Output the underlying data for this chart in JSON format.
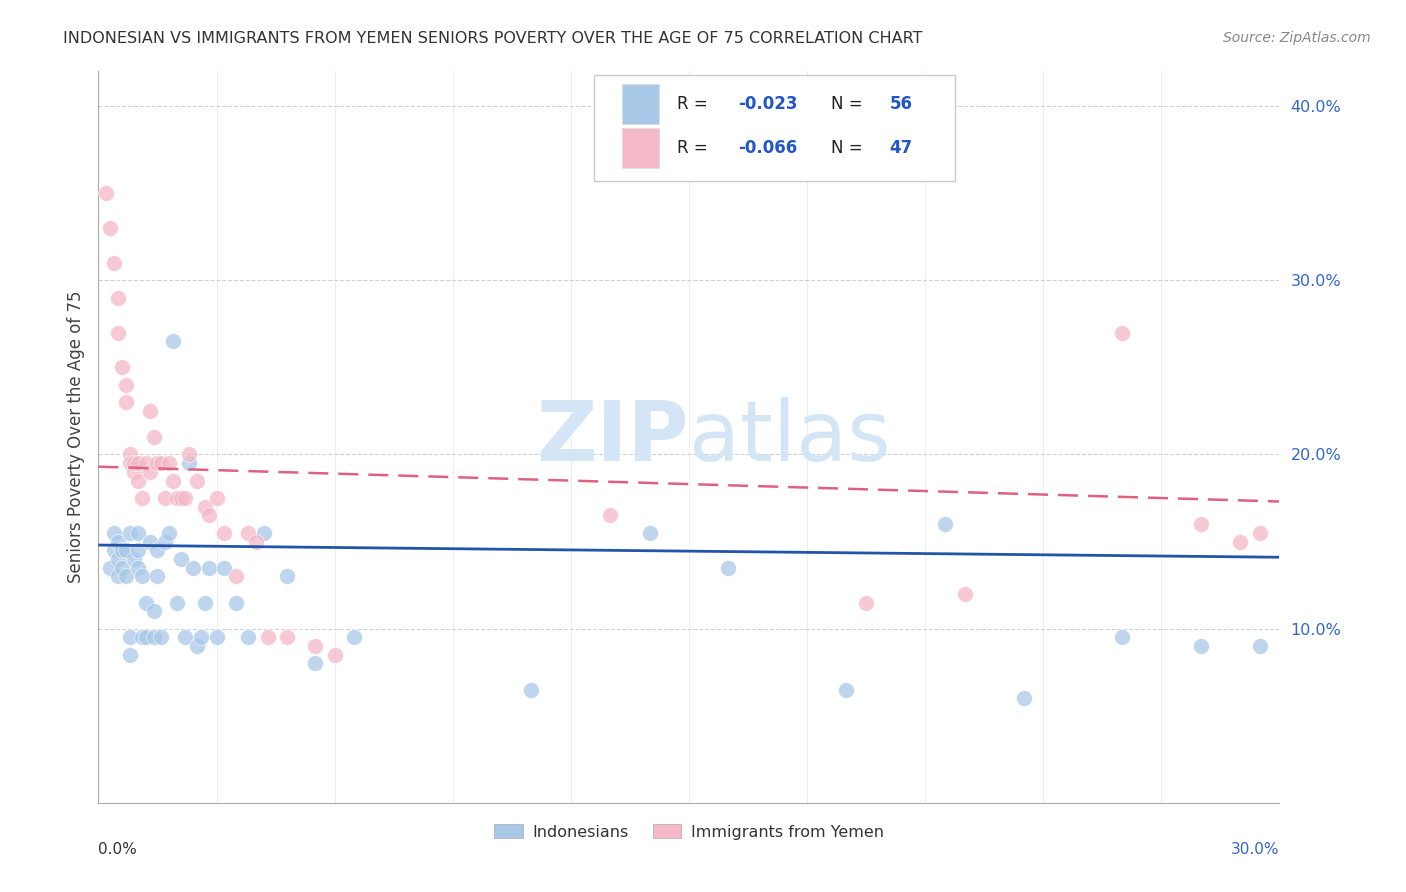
{
  "title": "INDONESIAN VS IMMIGRANTS FROM YEMEN SENIORS POVERTY OVER THE AGE OF 75 CORRELATION CHART",
  "source": "Source: ZipAtlas.com",
  "ylabel": "Seniors Poverty Over the Age of 75",
  "xlim": [
    0.0,
    0.3
  ],
  "ylim": [
    0.0,
    0.42
  ],
  "yticks": [
    0.1,
    0.2,
    0.3,
    0.4
  ],
  "ytick_labels": [
    "10.0%",
    "20.0%",
    "30.0%",
    "40.0%"
  ],
  "blue_color": "#a8c8e8",
  "pink_color": "#f4b8c8",
  "blue_line_color": "#2255aa",
  "pink_line_color": "#e06080",
  "watermark_color": "#d0e4f4",
  "indonesians_x": [
    0.003,
    0.004,
    0.004,
    0.005,
    0.005,
    0.005,
    0.006,
    0.006,
    0.007,
    0.007,
    0.008,
    0.008,
    0.008,
    0.009,
    0.01,
    0.01,
    0.01,
    0.011,
    0.011,
    0.012,
    0.012,
    0.013,
    0.014,
    0.014,
    0.015,
    0.015,
    0.016,
    0.017,
    0.018,
    0.019,
    0.02,
    0.021,
    0.022,
    0.023,
    0.024,
    0.025,
    0.026,
    0.027,
    0.028,
    0.03,
    0.032,
    0.035,
    0.038,
    0.042,
    0.048,
    0.055,
    0.065,
    0.11,
    0.14,
    0.16,
    0.19,
    0.215,
    0.235,
    0.26,
    0.28,
    0.295
  ],
  "indonesians_y": [
    0.135,
    0.145,
    0.155,
    0.13,
    0.14,
    0.15,
    0.135,
    0.145,
    0.13,
    0.145,
    0.085,
    0.095,
    0.155,
    0.14,
    0.135,
    0.145,
    0.155,
    0.095,
    0.13,
    0.095,
    0.115,
    0.15,
    0.095,
    0.11,
    0.13,
    0.145,
    0.095,
    0.15,
    0.155,
    0.265,
    0.115,
    0.14,
    0.095,
    0.195,
    0.135,
    0.09,
    0.095,
    0.115,
    0.135,
    0.095,
    0.135,
    0.115,
    0.095,
    0.155,
    0.13,
    0.08,
    0.095,
    0.065,
    0.155,
    0.135,
    0.065,
    0.16,
    0.06,
    0.095,
    0.09,
    0.09
  ],
  "yemen_x": [
    0.002,
    0.003,
    0.004,
    0.005,
    0.005,
    0.006,
    0.007,
    0.007,
    0.008,
    0.008,
    0.009,
    0.009,
    0.01,
    0.01,
    0.011,
    0.012,
    0.013,
    0.013,
    0.014,
    0.015,
    0.016,
    0.017,
    0.018,
    0.019,
    0.02,
    0.021,
    0.022,
    0.023,
    0.025,
    0.027,
    0.028,
    0.03,
    0.032,
    0.035,
    0.038,
    0.04,
    0.043,
    0.048,
    0.055,
    0.06,
    0.13,
    0.195,
    0.22,
    0.26,
    0.28,
    0.29,
    0.295
  ],
  "yemen_y": [
    0.35,
    0.33,
    0.31,
    0.29,
    0.27,
    0.25,
    0.24,
    0.23,
    0.2,
    0.195,
    0.19,
    0.195,
    0.185,
    0.195,
    0.175,
    0.195,
    0.19,
    0.225,
    0.21,
    0.195,
    0.195,
    0.175,
    0.195,
    0.185,
    0.175,
    0.175,
    0.175,
    0.2,
    0.185,
    0.17,
    0.165,
    0.175,
    0.155,
    0.13,
    0.155,
    0.15,
    0.095,
    0.095,
    0.09,
    0.085,
    0.165,
    0.115,
    0.12,
    0.27,
    0.16,
    0.15,
    0.155
  ],
  "blue_line_x": [
    0.0,
    0.3
  ],
  "blue_line_y": [
    0.148,
    0.141
  ],
  "pink_line_x": [
    0.0,
    0.3
  ],
  "pink_line_y": [
    0.193,
    0.173
  ]
}
